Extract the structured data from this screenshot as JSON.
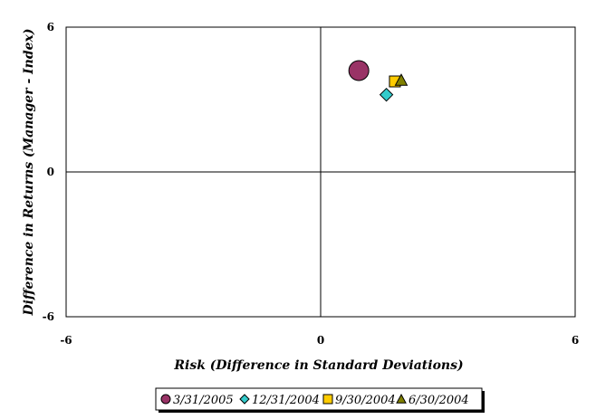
{
  "chart_data": {
    "type": "scatter",
    "title": "",
    "xlabel": "Risk (Difference in Standard Deviations)",
    "ylabel": "Difference in Returns (Manager - Index)",
    "xlim": [
      -6,
      6
    ],
    "ylim": [
      -6,
      6
    ],
    "x_ticks": [
      "-6",
      "0",
      "6"
    ],
    "y_ticks": [
      "6",
      "0",
      "-6"
    ],
    "grid": false,
    "legend_position": "bottom",
    "series": [
      {
        "name": "3/31/2005",
        "marker": "circle",
        "color": "#993366",
        "points": [
          {
            "x": 0.9,
            "y": 4.2
          }
        ]
      },
      {
        "name": "12/31/2004",
        "marker": "diamond",
        "color": "#33CCCC",
        "points": [
          {
            "x": 1.55,
            "y": 3.2
          }
        ]
      },
      {
        "name": "9/30/2004",
        "marker": "square",
        "color": "#FFCC00",
        "points": [
          {
            "x": 1.75,
            "y": 3.75
          }
        ]
      },
      {
        "name": "6/30/2004",
        "marker": "triangle",
        "color": "#808000",
        "points": [
          {
            "x": 1.9,
            "y": 3.8
          }
        ]
      }
    ]
  }
}
